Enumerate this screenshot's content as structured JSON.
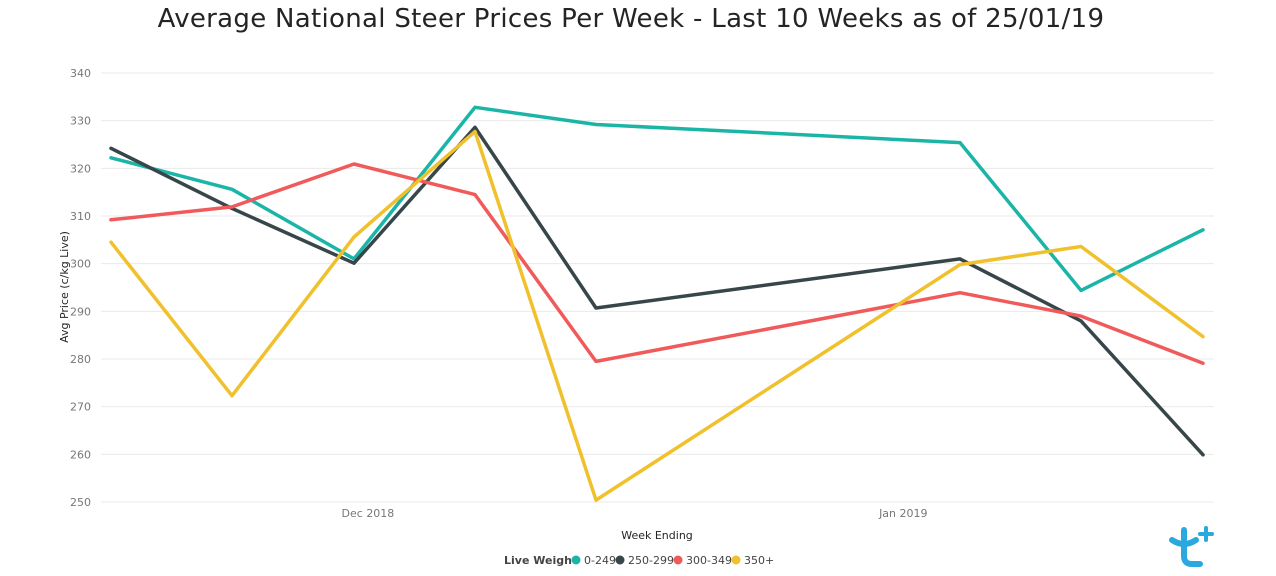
{
  "chart_data": {
    "type": "line",
    "title": "Average National Steer Prices Per Week - Last 10 Weeks as of 25/01/19",
    "xlabel": "Week Ending",
    "ylabel": "Avg Price (c/kg Live)",
    "ylim": [
      250,
      340
    ],
    "yticks": [
      250,
      260,
      270,
      280,
      290,
      300,
      310,
      320,
      330,
      340
    ],
    "x_tick_labels": [
      "Dec 2018",
      "Jan 2019"
    ],
    "grid": true,
    "legend_title": "Live Weight",
    "legend_position": "bottom-center",
    "x": [
      "2018-11-23",
      "2018-11-30",
      "2018-12-07",
      "2018-12-14",
      "2018-12-21",
      "2019-01-11",
      "2019-01-18",
      "2019-01-25"
    ],
    "series": [
      {
        "name": "0-249",
        "color": "#1BB5A8",
        "values": [
          322.2,
          315.6,
          301.0,
          332.8,
          329.2,
          325.4,
          294.4,
          307.1
        ]
      },
      {
        "name": "250-299",
        "color": "#374649",
        "values": [
          324.2,
          311.6,
          300.1,
          328.6,
          290.7,
          301.0,
          288.0,
          259.9
        ]
      },
      {
        "name": "300-349",
        "color": "#F05A5A",
        "values": [
          309.2,
          311.9,
          320.9,
          314.5,
          279.5,
          293.9,
          289.0,
          279.1
        ]
      },
      {
        "name": "350+",
        "color": "#F0C12C",
        "values": [
          304.5,
          272.3,
          305.6,
          327.7,
          250.4,
          299.8,
          303.6,
          284.7
        ]
      }
    ]
  },
  "logo": {
    "name": "brand-logo-icon",
    "color": "#2BA8E0"
  }
}
